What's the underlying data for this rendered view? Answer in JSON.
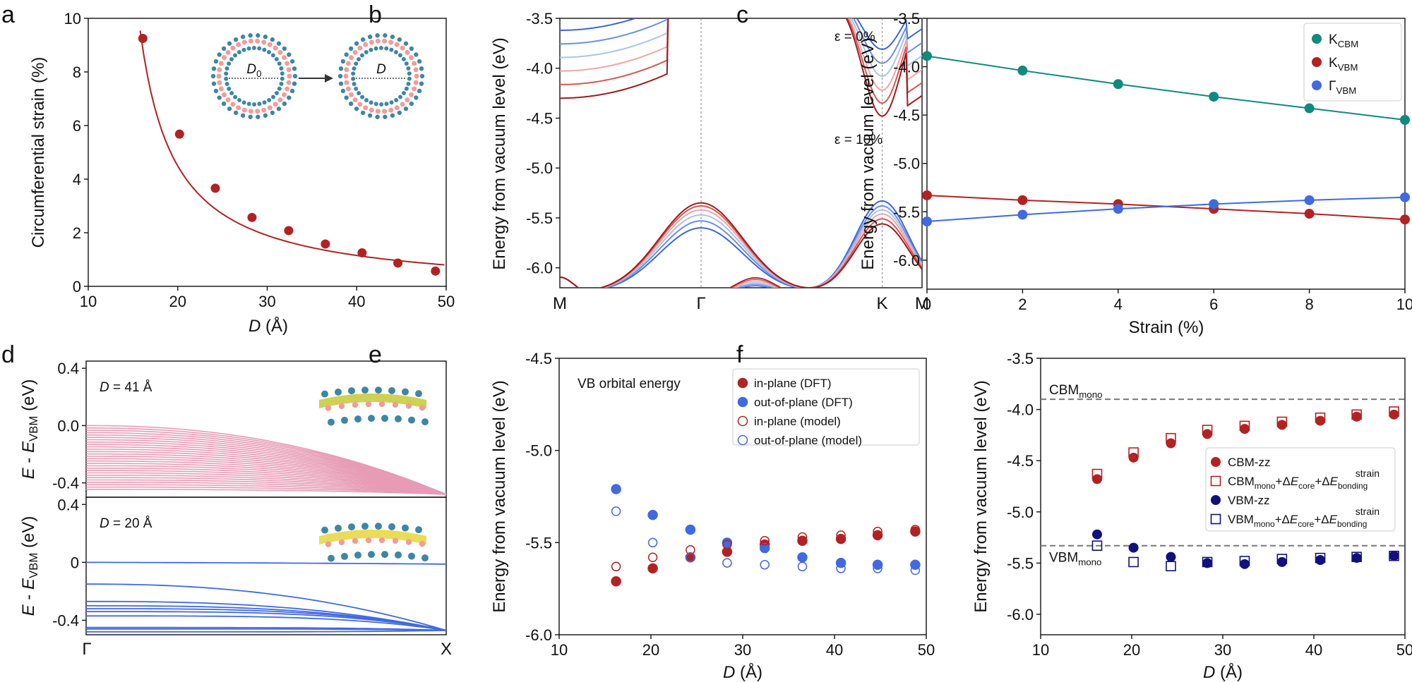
{
  "colors": {
    "red": "#b22222",
    "blue": "#4169e1",
    "teal": "#10897e",
    "navy": "#10107f",
    "pink": "#e79bb5",
    "gray": "#777777",
    "oxide_blue": "#3d86a6",
    "oxide_pink": "#f29c98"
  },
  "chart_data": [
    {
      "panel": "a",
      "type": "scatter",
      "xlabel_italic": "D",
      "xlabel": " (Å)",
      "ylabel": "Circumferential strain (%)",
      "xlim": [
        10,
        50
      ],
      "ylim": [
        0,
        10
      ],
      "xticks": [
        10,
        20,
        30,
        40,
        50
      ],
      "yticks": [
        0,
        2,
        4,
        6,
        8,
        10
      ],
      "inset_labels": {
        "d0": "D",
        "d0_sub": "0",
        "d": "D"
      },
      "series": [
        {
          "name": "strain",
          "color_key": "red",
          "x": [
            16.1,
            20.2,
            24.2,
            28.3,
            32.4,
            36.5,
            40.6,
            44.6,
            48.8
          ],
          "y": [
            9.25,
            5.68,
            3.66,
            2.57,
            2.08,
            1.58,
            1.25,
            0.87,
            0.57
          ],
          "fit": "k/x",
          "fit_k": 37.5
        }
      ]
    },
    {
      "panel": "b",
      "type": "line",
      "ylabel": "Energy from vacuum level (eV)",
      "ylim": [
        -6.2,
        -3.5
      ],
      "yticks": [
        -6.0,
        -5.5,
        -5.0,
        -4.5,
        -4.0,
        -3.5
      ],
      "ytick_labels": [
        "-6.0",
        "-5.5",
        "-5.0",
        "-4.5",
        "-4.0",
        "-3.5"
      ],
      "kpath": [
        "M",
        "Γ",
        "K",
        "M"
      ],
      "kpath_positions": [
        0,
        0.39,
        0.89,
        1.0
      ],
      "annotations": [
        "ε = 0%",
        "ε = 10%"
      ],
      "series": [
        {
          "name": "ε = 0%",
          "color": "#3c66d8",
          "vbm_gamma": -5.6,
          "vbm_k": -5.33,
          "cb_k": -3.88
        },
        {
          "name": "ε = 2%",
          "color": "#6b8fe6",
          "vbm_gamma": -5.53,
          "vbm_k": -5.38,
          "cb_k": -4.02
        },
        {
          "name": "ε = 4%",
          "color": "#aac3ee",
          "vbm_gamma": -5.47,
          "vbm_k": -5.42,
          "cb_k": -4.15
        },
        {
          "name": "ε = 6%",
          "color": "#f2a6a6",
          "vbm_gamma": -5.42,
          "vbm_k": -5.46,
          "cb_k": -4.29
        },
        {
          "name": "ε = 8%",
          "color": "#d95555",
          "vbm_gamma": -5.38,
          "vbm_k": -5.51,
          "cb_k": -4.42
        },
        {
          "name": "ε = 10%",
          "color": "#9b1c1c",
          "vbm_gamma": -5.35,
          "vbm_k": -5.56,
          "cb_k": -4.55
        }
      ]
    },
    {
      "panel": "c",
      "type": "line",
      "xlabel": "Strain (%)",
      "ylabel": "Energy from vacuum level (eV)",
      "xlim": [
        0,
        10
      ],
      "ylim": [
        -6.3,
        -3.5
      ],
      "xticks": [
        0,
        2,
        4,
        6,
        8,
        10
      ],
      "yticks": [
        -6.0,
        -5.5,
        -5.0,
        -4.5,
        -4.0,
        -3.5
      ],
      "ytick_labels": [
        "-6.0",
        "-5.5",
        "-5.0",
        "-4.5",
        "-4.0",
        "-3.5"
      ],
      "x": [
        0,
        2,
        4,
        6,
        8,
        10
      ],
      "series": [
        {
          "name": "K",
          "sub": "CBM",
          "color_key": "teal",
          "values": [
            -3.89,
            -4.04,
            -4.18,
            -4.31,
            -4.43,
            -4.55
          ]
        },
        {
          "name": "K",
          "sub": "VBM",
          "color_key": "red",
          "values": [
            -5.33,
            -5.38,
            -5.42,
            -5.47,
            -5.52,
            -5.58
          ]
        },
        {
          "name": "Γ",
          "sub": "VBM",
          "color_key": "blue",
          "values": [
            -5.6,
            -5.53,
            -5.47,
            -5.42,
            -5.38,
            -5.35
          ]
        }
      ]
    },
    {
      "panel": "d",
      "type": "line",
      "xticks_labels": [
        "Γ",
        "X"
      ],
      "ylabel_parts": [
        "E",
        " - ",
        "E",
        "VBM",
        " (eV)"
      ],
      "subpanels": [
        {
          "label_italic": "D",
          "label": " = 41 Å",
          "color_key": "pink",
          "ylim": [
            -0.5,
            0.45
          ],
          "yticks": [
            -0.4,
            0.0,
            0.4
          ],
          "ytick_labels": [
            "-0.4",
            "0.0",
            "0.4"
          ],
          "band_count": 28
        },
        {
          "label_italic": "D",
          "label": " = 20 Å",
          "color_key": "blue",
          "ylim": [
            -0.5,
            0.45
          ],
          "yticks": [
            -0.4,
            0,
            0.4
          ],
          "ytick_labels": [
            "-0.4",
            "0",
            "0.4"
          ],
          "band_offsets": [
            0.0,
            -0.15,
            -0.27,
            -0.3,
            -0.32,
            -0.34,
            -0.37,
            -0.45,
            -0.46,
            -0.48
          ]
        }
      ]
    },
    {
      "panel": "e",
      "type": "scatter",
      "title": "VB orbital energy",
      "xlabel_italic": "D",
      "xlabel": " (Å)",
      "ylabel": "Energy from vacuum level (eV)",
      "xlim": [
        10,
        50
      ],
      "ylim": [
        -6.0,
        -4.5
      ],
      "xticks": [
        10,
        20,
        30,
        40,
        50
      ],
      "yticks": [
        -6.0,
        -5.5,
        -5.0,
        -4.5
      ],
      "ytick_labels": [
        "-6.0",
        "-5.5",
        "-5.0",
        "-4.5"
      ],
      "x": [
        16.2,
        20.2,
        24.3,
        28.3,
        32.4,
        36.5,
        40.7,
        44.7,
        48.8
      ],
      "series": [
        {
          "name": "in-plane (DFT)",
          "color_key": "red",
          "filled": true,
          "values": [
            -5.71,
            -5.64,
            -5.58,
            -5.55,
            -5.51,
            -5.49,
            -5.48,
            -5.46,
            -5.44
          ]
        },
        {
          "name": "out-of-plane (DFT)",
          "color_key": "blue",
          "filled": true,
          "values": [
            -5.21,
            -5.35,
            -5.43,
            -5.5,
            -5.53,
            -5.58,
            -5.61,
            -5.62,
            -5.62
          ]
        },
        {
          "name": "in-plane (model)",
          "color_key": "red",
          "filled": false,
          "values": [
            -5.63,
            -5.58,
            -5.54,
            -5.51,
            -5.49,
            -5.47,
            -5.46,
            -5.44,
            -5.43
          ]
        },
        {
          "name": "out-of-plane (model)",
          "color_key": "blue",
          "filled": false,
          "values": [
            -5.33,
            -5.5,
            -5.58,
            -5.61,
            -5.62,
            -5.63,
            -5.64,
            -5.64,
            -5.65
          ]
        }
      ]
    },
    {
      "panel": "f",
      "type": "scatter",
      "xlabel_italic": "D",
      "xlabel": " (Å)",
      "ylabel": "Energy from vacuum level (eV)",
      "xlim": [
        10,
        50
      ],
      "ylim": [
        -6.2,
        -3.5
      ],
      "xticks": [
        10,
        20,
        30,
        40,
        50
      ],
      "yticks": [
        -6.0,
        -5.5,
        -5.0,
        -4.5,
        -4.0,
        -3.5
      ],
      "ytick_labels": [
        "-6.0",
        "-5.5",
        "-5.0",
        "-4.5",
        "-4.0",
        "-3.5"
      ],
      "hlines": [
        {
          "name": "CBM",
          "sub": "mono",
          "value": -3.9
        },
        {
          "name": "VBM",
          "sub": "mono",
          "value": -5.33
        }
      ],
      "x": [
        16.2,
        20.2,
        24.3,
        28.3,
        32.4,
        36.5,
        40.7,
        44.7,
        48.8
      ],
      "series": [
        {
          "name": "CBM-zz",
          "color_key": "red",
          "marker": "circle",
          "values": [
            -4.68,
            -4.47,
            -4.33,
            -4.24,
            -4.19,
            -4.15,
            -4.11,
            -4.07,
            -4.05
          ]
        },
        {
          "name": "CBM",
          "legend_sub": "mono",
          "legend_tail": "core",
          "color_key": "red",
          "marker": "square",
          "values": [
            -4.63,
            -4.42,
            -4.28,
            -4.2,
            -4.16,
            -4.12,
            -4.08,
            -4.05,
            -4.02
          ]
        },
        {
          "name": "VBM-zz",
          "color_key": "navy",
          "marker": "circle",
          "values": [
            -5.22,
            -5.35,
            -5.44,
            -5.5,
            -5.51,
            -5.49,
            -5.47,
            -5.45,
            -5.43
          ]
        },
        {
          "name": "VBM",
          "legend_sub": "mono",
          "legend_tail": "core",
          "color_key": "navy",
          "marker": "square",
          "values": [
            -5.33,
            -5.49,
            -5.53,
            -5.49,
            -5.48,
            -5.46,
            -5.45,
            -5.44,
            -5.43
          ]
        }
      ],
      "legend_terms": {
        "plus": "+",
        "delta": "Δ",
        "E": "E",
        "core": "core",
        "strain": "strain",
        "bonding": "bonding"
      }
    }
  ],
  "panel_labels": [
    "a",
    "b",
    "c",
    "d",
    "e",
    "f"
  ]
}
